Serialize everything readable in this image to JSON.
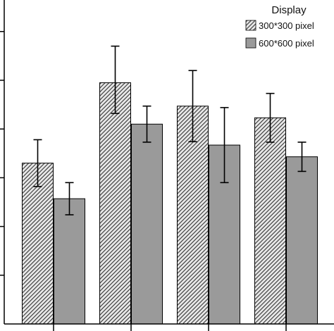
{
  "chart_data": {
    "type": "bar",
    "categories": [
      "",
      "",
      "",
      ""
    ],
    "series": [
      {
        "name": "300*300 pixel",
        "values": [
          3.3,
          4.95,
          4.47,
          4.23
        ],
        "err_low": [
          0.48,
          0.63,
          0.73,
          0.5
        ],
        "err_high": [
          0.48,
          0.75,
          0.73,
          0.5
        ],
        "pattern": "hatch",
        "color": "#5a5a5a"
      },
      {
        "name": "600*600 pixel",
        "values": [
          2.57,
          4.1,
          3.67,
          3.43
        ],
        "err_low": [
          0.33,
          0.37,
          0.77,
          0.3
        ],
        "err_high": [
          0.33,
          0.37,
          0.77,
          0.3
        ],
        "pattern": "solid",
        "color": "#9a9a9a"
      }
    ],
    "title": "",
    "xlabel": "",
    "ylabel": "",
    "ylim": [
      0,
      6.3
    ],
    "grid": false,
    "legend": {
      "title": "Display",
      "position": "top-right"
    }
  }
}
